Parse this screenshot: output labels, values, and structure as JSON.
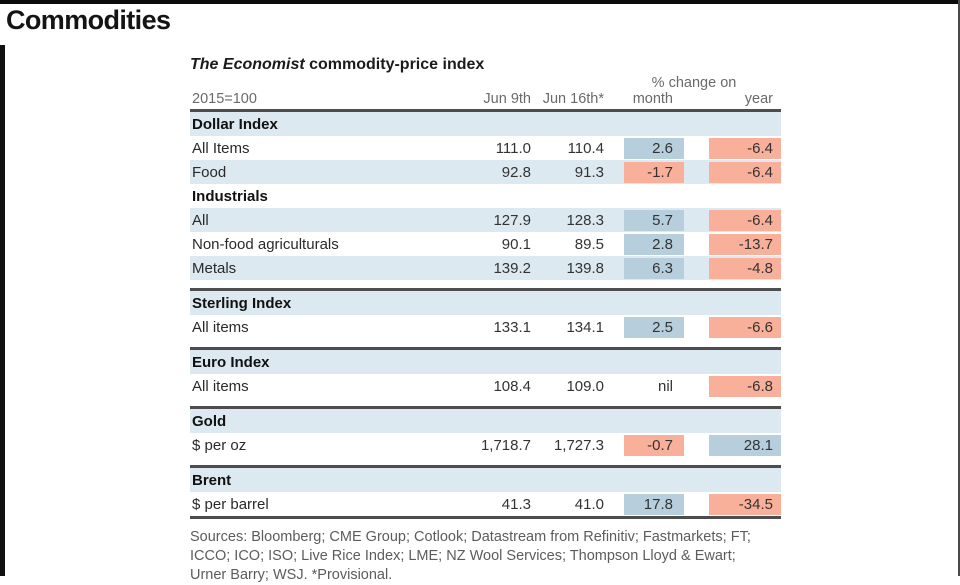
{
  "page": {
    "heading": "Commodities"
  },
  "table": {
    "title_em": "The Economist",
    "title_rest": " commodity-price index",
    "base_label": "2015=100",
    "pct_change_label": "% change on",
    "col_jun9": "Jun 9th",
    "col_jun16": "Jun 16th*",
    "col_month": "month",
    "col_year": "year",
    "sections": [
      {
        "header": "Dollar Index",
        "rows": [
          {
            "label": "All Items",
            "jun9": "111.0",
            "jun16": "110.4",
            "month": "2.6",
            "month_color": "blue",
            "year": "-6.4",
            "year_color": "red"
          },
          {
            "label": "Food",
            "jun9": "92.8",
            "jun16": "91.3",
            "month": "-1.7",
            "month_color": "red",
            "year": "-6.4",
            "year_color": "red"
          }
        ]
      },
      {
        "header": "Industrials",
        "rows": [
          {
            "label": "All",
            "jun9": "127.9",
            "jun16": "128.3",
            "month": "5.7",
            "month_color": "blue",
            "year": "-6.4",
            "year_color": "red"
          },
          {
            "label": "Non-food agriculturals",
            "jun9": "90.1",
            "jun16": "89.5",
            "month": "2.8",
            "month_color": "blue",
            "year": "-13.7",
            "year_color": "red"
          },
          {
            "label": "Metals",
            "jun9": "139.2",
            "jun16": "139.8",
            "month": "6.3",
            "month_color": "blue",
            "year": "-4.8",
            "year_color": "red"
          }
        ]
      },
      {
        "header": "Sterling Index",
        "rows": [
          {
            "label": "All items",
            "jun9": "133.1",
            "jun16": "134.1",
            "month": "2.5",
            "month_color": "blue",
            "year": "-6.6",
            "year_color": "red"
          }
        ]
      },
      {
        "header": "Euro Index",
        "rows": [
          {
            "label": "All items",
            "jun9": "108.4",
            "jun16": "109.0",
            "month": "nil",
            "month_color": "none",
            "year": "-6.8",
            "year_color": "red"
          }
        ]
      },
      {
        "header": "Gold",
        "rows": [
          {
            "label": "$ per oz",
            "jun9": "1,718.7",
            "jun16": "1,727.3",
            "month": "-0.7",
            "month_color": "red",
            "year": "28.1",
            "year_color": "blue"
          }
        ]
      },
      {
        "header": "Brent",
        "rows": [
          {
            "label": "$ per barrel",
            "jun9": "41.3",
            "jun16": "41.0",
            "month": "17.8",
            "month_color": "blue",
            "year": "-34.5",
            "year_color": "red"
          }
        ]
      }
    ],
    "source_lines": [
      "Sources: Bloomberg; CME Group; Cotlook; Datastream from Refinitiv; Fastmarkets; FT;",
      "ICCO; ICO; ISO; Live Rice Index; LME; NZ Wool Services; Thompson Lloyd & Ewart;",
      "Urner Barry; WSJ.  *Provisional."
    ]
  },
  "colors": {
    "stripe_blue": "#dce9f1",
    "chip_positive_blue": "#b7cedd",
    "chip_negative_red": "#f8b09a",
    "rule_gray": "#4d4d4d"
  }
}
